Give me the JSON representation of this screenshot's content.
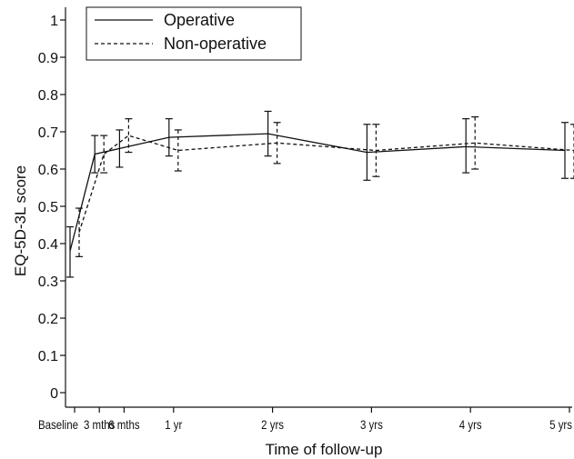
{
  "chart_data": {
    "type": "line",
    "title": "",
    "xlabel": "Time of follow-up",
    "ylabel": "EQ-5D-3L score",
    "ylim": [
      0,
      1
    ],
    "yticks": [
      "0",
      "0.1",
      "0.2",
      "0.3",
      "0.4",
      "0.5",
      "0.6",
      "0.7",
      "0.8",
      "0.9",
      "1"
    ],
    "grid": false,
    "legend_position": "top-left",
    "categories": [
      "Baseline",
      "3 mths",
      "6 mths",
      "1 yr",
      "2 yrs",
      "3 yrs",
      "4 yrs",
      "5 yrs"
    ],
    "x_months": [
      0,
      3,
      6,
      12,
      24,
      36,
      48,
      60
    ],
    "series": [
      {
        "name": "Operative",
        "style": "solid",
        "values": [
          0.38,
          0.64,
          0.655,
          0.685,
          0.695,
          0.645,
          0.66,
          0.65
        ],
        "lower": [
          0.31,
          0.59,
          0.605,
          0.635,
          0.635,
          0.57,
          0.59,
          0.575
        ],
        "upper": [
          0.445,
          0.69,
          0.705,
          0.735,
          0.755,
          0.72,
          0.735,
          0.725
        ]
      },
      {
        "name": "Non-operative",
        "style": "dashed",
        "values": [
          0.43,
          0.64,
          0.69,
          0.65,
          0.67,
          0.65,
          0.67,
          0.65
        ],
        "lower": [
          0.365,
          0.59,
          0.645,
          0.595,
          0.615,
          0.58,
          0.6,
          0.575
        ],
        "upper": [
          0.495,
          0.69,
          0.735,
          0.705,
          0.725,
          0.72,
          0.74,
          0.72
        ]
      }
    ]
  }
}
